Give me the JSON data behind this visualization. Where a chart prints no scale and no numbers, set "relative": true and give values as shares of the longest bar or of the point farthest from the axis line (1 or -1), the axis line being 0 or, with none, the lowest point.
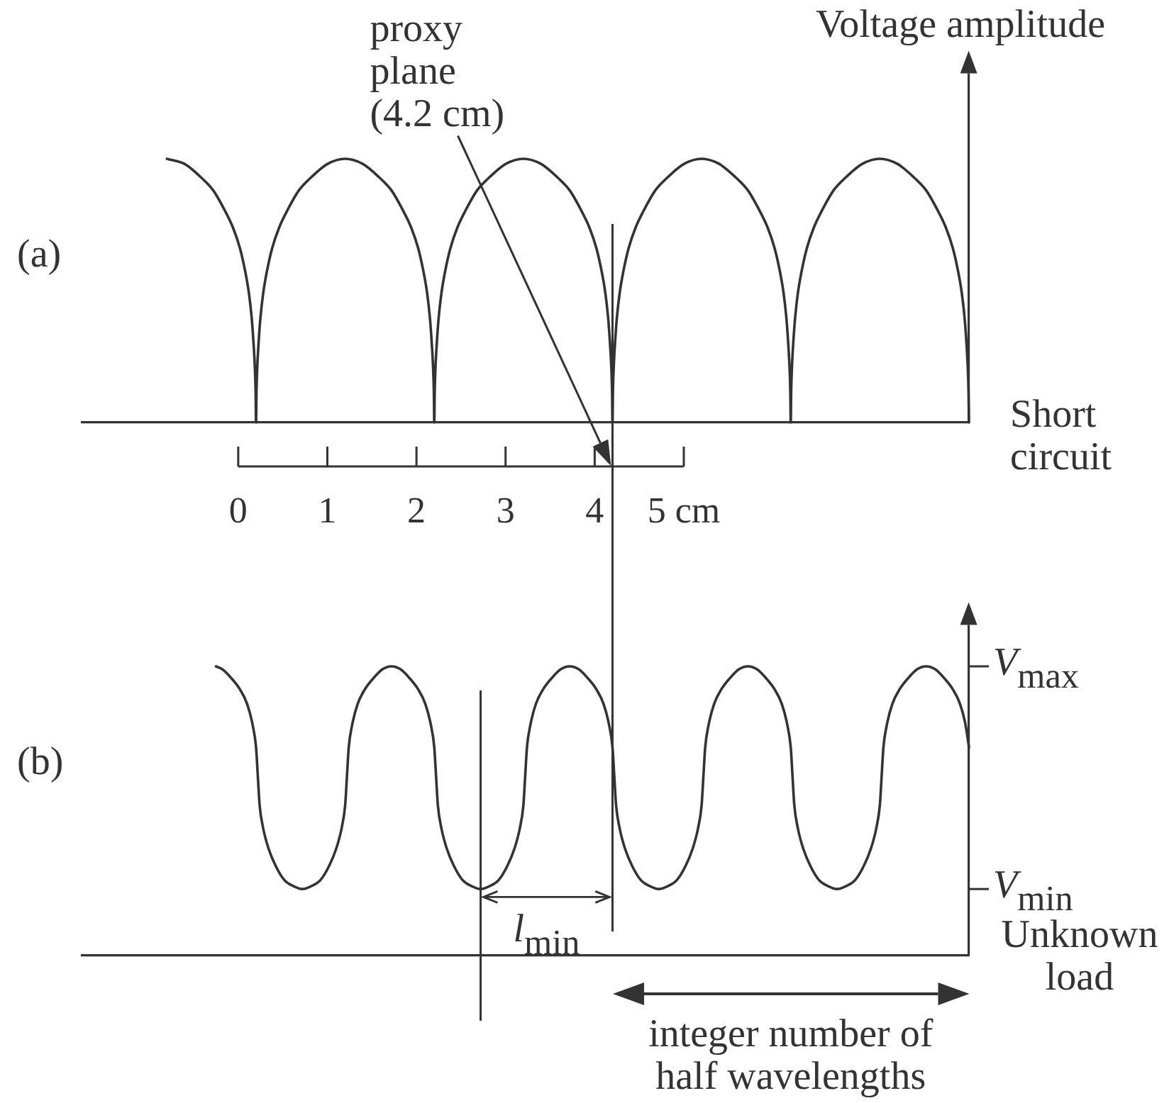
{
  "chart_data": [
    {
      "type": "line",
      "title": "(a)",
      "ylabel": "Voltage amplitude",
      "relative": true,
      "tick_labels": "x",
      "x": [
        -0.8,
        -0.6,
        -0.42,
        -0.28,
        -0.16,
        -0.06,
        0.02,
        0.08,
        0.12,
        0.15,
        0.17,
        0.185,
        0.195,
        0.2,
        0.205,
        0.215,
        0.23,
        0.25,
        0.28,
        0.32,
        0.38,
        0.46,
        0.56,
        0.68,
        0.82,
        1.0,
        1.2,
        1.4,
        1.58,
        1.72,
        1.84,
        1.94,
        2.02,
        2.08,
        2.12,
        2.15,
        2.17,
        2.185,
        2.195,
        2.2,
        2.205,
        2.215,
        2.23,
        2.25,
        2.28,
        2.32,
        2.38,
        2.46,
        2.56,
        2.68,
        2.82,
        3.0,
        3.2,
        3.4,
        3.58,
        3.72,
        3.84,
        3.94,
        4.02,
        4.08,
        4.12,
        4.15,
        4.17,
        4.185,
        4.195,
        4.2,
        4.205,
        4.215,
        4.23,
        4.25,
        4.28,
        4.32,
        4.38,
        4.46,
        4.56,
        4.68,
        4.82,
        5.0,
        5.2,
        5.4,
        5.58,
        5.72,
        5.84,
        5.94,
        6.02,
        6.08,
        6.12,
        6.15,
        6.17,
        6.185,
        6.195,
        6.2,
        6.205,
        6.215,
        6.23,
        6.25,
        6.28,
        6.32,
        6.38,
        6.46,
        6.56,
        6.68,
        6.82,
        7.0,
        7.2,
        7.4,
        7.58,
        7.72,
        7.84,
        7.94,
        8.02,
        8.08,
        8.12,
        8.15,
        8.17,
        8.185,
        8.195,
        8.2
      ],
      "series": [
        {
          "color": "#333333",
          "values": [
            1,
            0.98,
            0.93,
            0.88,
            0.81,
            0.74,
            0.66,
            0.57,
            0.49,
            0.4,
            0.31,
            0.22,
            0.12,
            0,
            0.12,
            0.22,
            0.31,
            0.4,
            0.49,
            0.57,
            0.66,
            0.74,
            0.81,
            0.88,
            0.93,
            0.98,
            1,
            0.98,
            0.93,
            0.88,
            0.81,
            0.74,
            0.66,
            0.57,
            0.49,
            0.4,
            0.31,
            0.22,
            0.12,
            0,
            0.12,
            0.22,
            0.31,
            0.4,
            0.49,
            0.57,
            0.66,
            0.74,
            0.81,
            0.88,
            0.93,
            0.98,
            1,
            0.98,
            0.93,
            0.88,
            0.81,
            0.74,
            0.66,
            0.57,
            0.49,
            0.4,
            0.31,
            0.22,
            0.12,
            0,
            0.12,
            0.22,
            0.31,
            0.4,
            0.49,
            0.57,
            0.66,
            0.74,
            0.81,
            0.88,
            0.93,
            0.98,
            1,
            0.98,
            0.93,
            0.88,
            0.81,
            0.74,
            0.66,
            0.57,
            0.49,
            0.4,
            0.31,
            0.22,
            0.12,
            0,
            0.12,
            0.22,
            0.31,
            0.4,
            0.49,
            0.57,
            0.66,
            0.74,
            0.81,
            0.88,
            0.93,
            0.98,
            1,
            0.98,
            0.93,
            0.88,
            0.81,
            0.74,
            0.66,
            0.57,
            0.49,
            0.4,
            0.31,
            0.22,
            0.12,
            0
          ]
        }
      ],
      "xlim": [
        -1.75,
        8.2
      ],
      "xticks": [
        0,
        1,
        2,
        3,
        4,
        {
          "value": 5,
          "label": "5 cm"
        }
      ],
      "ref_lines": [
        {
          "axis": "x",
          "value": 4.2,
          "label": "proxy\nplane\n(4.2 cm)"
        }
      ],
      "annotations": [
        "Short\ncircuit"
      ]
    },
    {
      "type": "line",
      "title": "(b)",
      "relative": true,
      "tick_labels": false,
      "x": [
        -0.25,
        -0.18,
        -0.08,
        0.02,
        0.1,
        0.16,
        0.2,
        0.22,
        0.24,
        0.28,
        0.34,
        0.42,
        0.52,
        0.62,
        0.72,
        0.82,
        0.92,
        1.02,
        1.1,
        1.16,
        1.2,
        1.22,
        1.24,
        1.28,
        1.34,
        1.42,
        1.52,
        1.62,
        1.72,
        1.82,
        1.92,
        2.02,
        2.1,
        2.16,
        2.2,
        2.22,
        2.24,
        2.28,
        2.34,
        2.42,
        2.52,
        2.62,
        2.72,
        2.82,
        2.92,
        3.02,
        3.1,
        3.16,
        3.2,
        3.22,
        3.24,
        3.28,
        3.34,
        3.42,
        3.52,
        3.62,
        3.72,
        3.82,
        3.92,
        4.02,
        4.1,
        4.16,
        4.2,
        4.22,
        4.24,
        4.28,
        4.34,
        4.42,
        4.52,
        4.62,
        4.72,
        4.82,
        4.92,
        5.02,
        5.1,
        5.16,
        5.2,
        5.22,
        5.24,
        5.28,
        5.34,
        5.42,
        5.52,
        5.62,
        5.72,
        5.82,
        5.92,
        6.02,
        6.1,
        6.16,
        6.2,
        6.22,
        6.24,
        6.28,
        6.34,
        6.42,
        6.52,
        6.62,
        6.72,
        6.82,
        6.92,
        7.02,
        7.1,
        7.16,
        7.2,
        7.22,
        7.24,
        7.28,
        7.34,
        7.42,
        7.52,
        7.62,
        7.72,
        7.82,
        7.92,
        8.02,
        8.1,
        8.16,
        8.2
      ],
      "series": [
        {
          "color": "#333333",
          "values": [
            1,
            0.99,
            0.96,
            0.92,
            0.87,
            0.8,
            0.72,
            0.62,
            0.52,
            0.44,
            0.37,
            0.31,
            0.26,
            0.24,
            0.23,
            0.24,
            0.26,
            0.31,
            0.37,
            0.44,
            0.52,
            0.62,
            0.72,
            0.8,
            0.87,
            0.92,
            0.96,
            0.99,
            1,
            0.99,
            0.96,
            0.92,
            0.87,
            0.8,
            0.72,
            0.62,
            0.52,
            0.44,
            0.37,
            0.31,
            0.26,
            0.24,
            0.23,
            0.24,
            0.26,
            0.31,
            0.37,
            0.44,
            0.52,
            0.62,
            0.72,
            0.8,
            0.87,
            0.92,
            0.96,
            0.99,
            1,
            0.99,
            0.96,
            0.92,
            0.87,
            0.8,
            0.72,
            0.62,
            0.52,
            0.44,
            0.37,
            0.31,
            0.26,
            0.24,
            0.23,
            0.24,
            0.26,
            0.31,
            0.37,
            0.44,
            0.52,
            0.62,
            0.72,
            0.8,
            0.87,
            0.92,
            0.96,
            0.99,
            1,
            0.99,
            0.96,
            0.92,
            0.87,
            0.8,
            0.72,
            0.62,
            0.52,
            0.44,
            0.37,
            0.31,
            0.26,
            0.24,
            0.23,
            0.24,
            0.26,
            0.31,
            0.37,
            0.44,
            0.52,
            0.62,
            0.72,
            0.8,
            0.87,
            0.92,
            0.96,
            0.99,
            1,
            0.99,
            0.96,
            0.92,
            0.87,
            0.8,
            0.72
          ]
        }
      ],
      "xlim": [
        -1.75,
        8.2
      ],
      "ref_lines": [
        {
          "axis": "x",
          "value": 2.72
        },
        {
          "axis": "x",
          "value": 4.2
        }
      ],
      "annotations": [
        "V$_{max}$",
        "V$_{min}$",
        "Unknown\nload",
        "l$_{min}$",
        "integer number of\nhalf wavelengths"
      ]
    }
  ]
}
